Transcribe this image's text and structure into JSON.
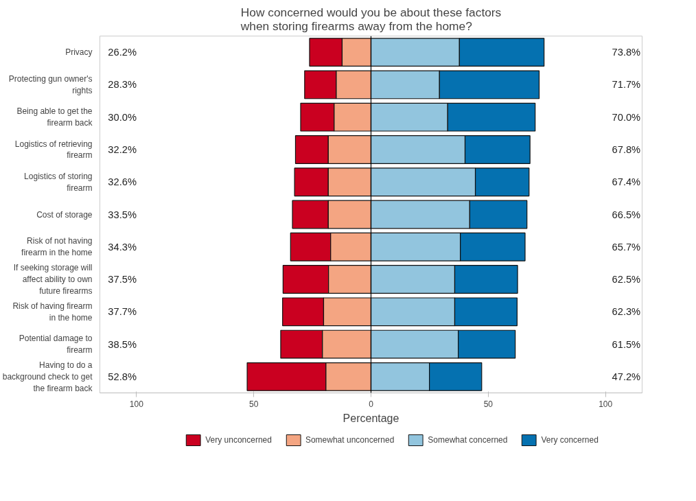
{
  "chart_data": {
    "type": "bar",
    "orientation": "horizontal",
    "title": "How concerned would you be about these factors\nwhen storing firearms away from the home?",
    "xlabel": "Percentage",
    "categories": [
      "Privacy",
      "Protecting gun owner's\nrights",
      "Being able to get the\nfirearm back",
      "Logistics of retrieving\nfirearm",
      "Logistics of storing\nfirearm",
      "Cost of storage",
      "Risk of not having\nfirearm in the home",
      "If seeking storage will\naffect ability to own\nfuture firearms",
      "Risk of having firearm\nin the home",
      "Potential damage to\nfirearm",
      "Having to do a\nbackground check to get\nthe firearm back"
    ],
    "series": [
      {
        "name": "Very unconcerned",
        "color": "#ca0020",
        "values": [
          13.9,
          13.5,
          14.3,
          14.0,
          14.4,
          15.3,
          17.1,
          19.4,
          17.5,
          17.8,
          33.6
        ],
        "base": [
          -26.2,
          -28.3,
          -30.0,
          -32.2,
          -32.6,
          -33.5,
          -34.3,
          -37.5,
          -37.7,
          -38.5,
          -52.8
        ]
      },
      {
        "name": "Somewhat unconcerned",
        "color": "#f4a582",
        "values": [
          12.3,
          14.8,
          15.7,
          18.2,
          18.2,
          18.2,
          17.2,
          18.1,
          20.2,
          20.7,
          19.2
        ],
        "base": [
          -12.3,
          -14.8,
          -15.7,
          -18.2,
          -18.2,
          -18.2,
          -17.2,
          -18.1,
          -20.2,
          -20.7,
          -19.2
        ]
      },
      {
        "name": "Somewhat concerned",
        "color": "#92c5de",
        "values": [
          37.7,
          29.2,
          32.7,
          40.1,
          44.5,
          42.1,
          38.1,
          35.7,
          35.7,
          37.2,
          24.9
        ],
        "base": [
          0,
          0,
          0,
          0,
          0,
          0,
          0,
          0,
          0,
          0,
          0
        ]
      },
      {
        "name": "Very concerned",
        "color": "#0571b0",
        "values": [
          36.1,
          42.5,
          37.3,
          27.7,
          22.9,
          24.4,
          27.6,
          26.8,
          26.6,
          24.3,
          22.3
        ],
        "base": [
          37.7,
          29.2,
          32.7,
          40.1,
          44.5,
          42.1,
          38.1,
          35.7,
          35.7,
          37.2,
          24.9
        ]
      }
    ],
    "xlim": [
      -115.6,
      115.6
    ],
    "xticks": [
      {
        "value": -100,
        "label": "100"
      },
      {
        "value": -50,
        "label": "50"
      },
      0,
      50,
      100
    ],
    "ref_lines": [
      {
        "axis": "x",
        "value": 0,
        "color": "#000000"
      }
    ],
    "annotations": [
      "26.2%",
      "73.8%",
      "28.3%",
      "71.7%",
      "30.0%",
      "70.0%",
      "32.2%",
      "67.8%",
      "32.6%",
      "67.4%",
      "33.5%",
      "66.5%",
      "34.3%",
      "65.7%",
      "37.5%",
      "62.5%",
      "37.7%",
      "62.3%",
      "38.5%",
      "61.5%",
      "52.8%",
      "47.2%"
    ],
    "legend": "bottom"
  }
}
